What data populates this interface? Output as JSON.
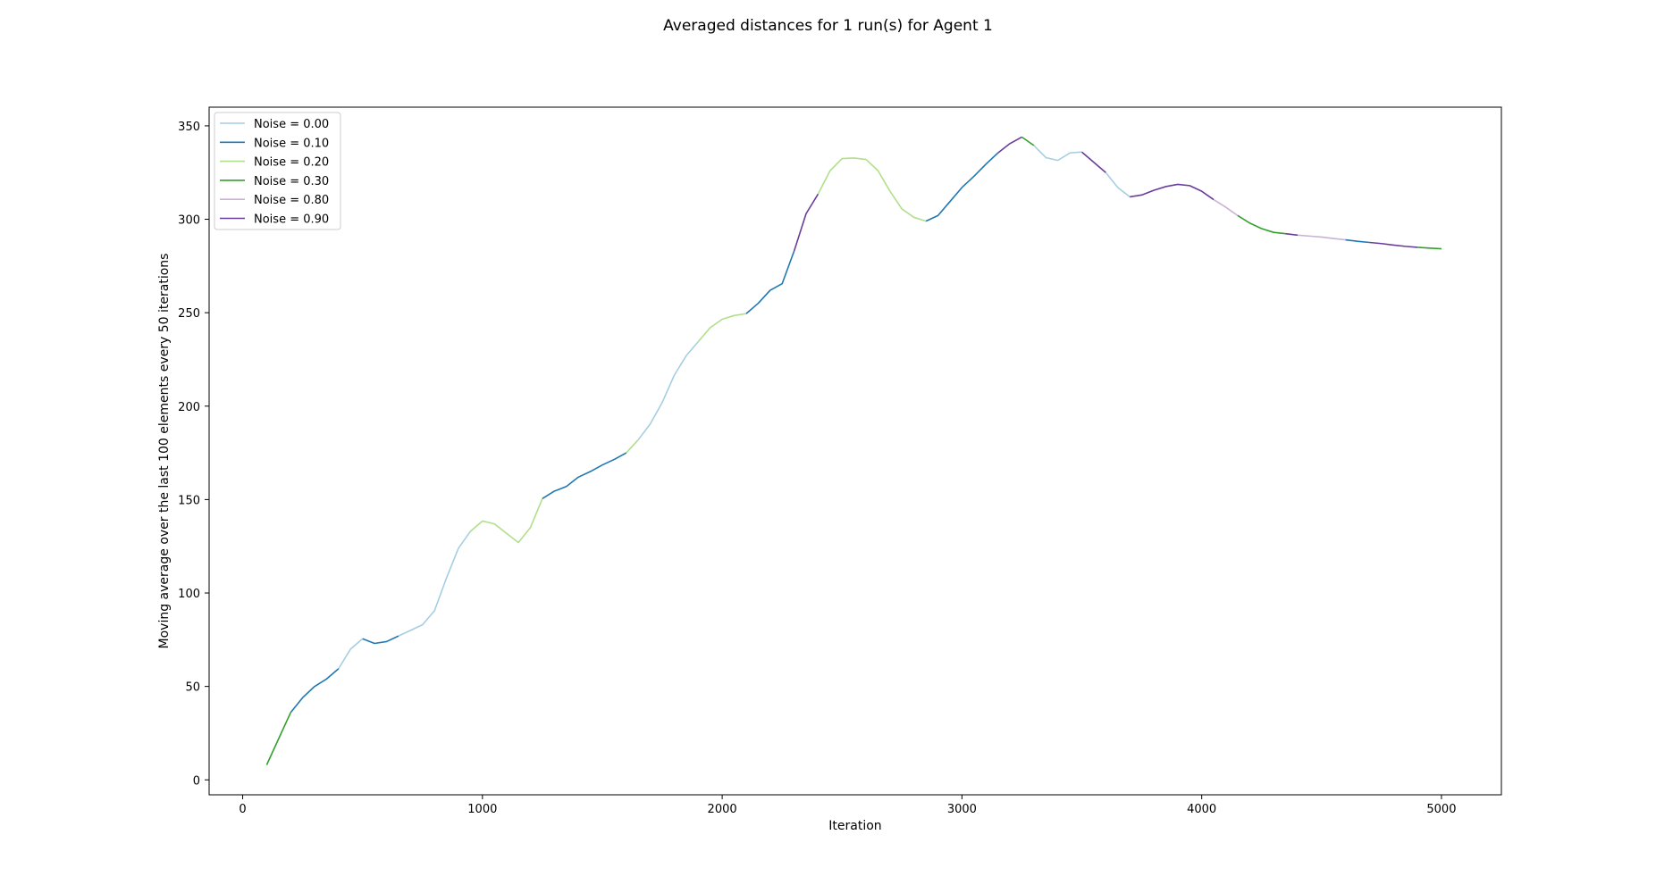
{
  "chart_data": {
    "type": "line",
    "title": "Averaged distances for 1 run(s) for Agent 1",
    "xlabel": "Iteration",
    "ylabel": "Moving average over the last 100 elements every 50 iterations",
    "xlim": [
      -140,
      5250
    ],
    "ylim": [
      -8,
      360
    ],
    "xticks": [
      0,
      1000,
      2000,
      3000,
      4000,
      5000
    ],
    "yticks": [
      0,
      50,
      100,
      150,
      200,
      250,
      300,
      350
    ],
    "grid": false,
    "legend_position": "top-left",
    "series": [
      {
        "name": "Noise = 0.00",
        "color": "#a6cee3"
      },
      {
        "name": "Noise = 0.10",
        "color": "#1f78b4"
      },
      {
        "name": "Noise = 0.20",
        "color": "#b2df8a"
      },
      {
        "name": "Noise = 0.30",
        "color": "#33a02c"
      },
      {
        "name": "Noise = 0.80",
        "color": "#cab2d6"
      },
      {
        "name": "Noise = 0.90",
        "color": "#6a3d9a"
      }
    ],
    "segments": [
      {
        "series": 3,
        "points": [
          [
            100,
            8
          ],
          [
            200,
            36
          ]
        ]
      },
      {
        "series": 1,
        "points": [
          [
            200,
            36
          ],
          [
            250,
            44
          ],
          [
            300,
            50
          ],
          [
            350,
            54
          ],
          [
            400,
            59.5
          ]
        ]
      },
      {
        "series": 0,
        "points": [
          [
            400,
            59.5
          ],
          [
            450,
            70
          ],
          [
            500,
            75.5
          ]
        ]
      },
      {
        "series": 1,
        "points": [
          [
            500,
            75.5
          ],
          [
            550,
            73
          ],
          [
            600,
            74
          ],
          [
            650,
            77
          ]
        ]
      },
      {
        "series": 0,
        "points": [
          [
            650,
            77
          ],
          [
            700,
            80
          ],
          [
            750,
            83
          ],
          [
            800,
            90.5
          ],
          [
            850,
            108
          ],
          [
            900,
            124
          ],
          [
            950,
            133
          ]
        ]
      },
      {
        "series": 2,
        "points": [
          [
            950,
            133
          ],
          [
            1000,
            138.5
          ],
          [
            1050,
            137
          ],
          [
            1100,
            132
          ],
          [
            1150,
            127
          ],
          [
            1200,
            135
          ],
          [
            1250,
            150.5
          ]
        ]
      },
      {
        "series": 1,
        "points": [
          [
            1250,
            150.5
          ],
          [
            1300,
            154.5
          ],
          [
            1350,
            157
          ],
          [
            1400,
            162
          ],
          [
            1450,
            165
          ],
          [
            1500,
            168.5
          ],
          [
            1550,
            171.5
          ],
          [
            1600,
            175
          ]
        ]
      },
      {
        "series": 2,
        "points": [
          [
            1600,
            175
          ],
          [
            1650,
            182
          ]
        ]
      },
      {
        "series": 0,
        "points": [
          [
            1650,
            182
          ],
          [
            1700,
            190.5
          ],
          [
            1750,
            202
          ],
          [
            1800,
            216.5
          ],
          [
            1850,
            227
          ],
          [
            1900,
            234.5
          ]
        ]
      },
      {
        "series": 2,
        "points": [
          [
            1900,
            234.5
          ],
          [
            1950,
            242
          ],
          [
            2000,
            246.5
          ],
          [
            2050,
            248.5
          ],
          [
            2100,
            249.5
          ]
        ]
      },
      {
        "series": 1,
        "points": [
          [
            2100,
            249.5
          ],
          [
            2150,
            255
          ],
          [
            2200,
            262
          ],
          [
            2250,
            265.5
          ],
          [
            2300,
            283
          ]
        ]
      },
      {
        "series": 5,
        "points": [
          [
            2300,
            283
          ],
          [
            2350,
            303
          ],
          [
            2400,
            313.5
          ]
        ]
      },
      {
        "series": 2,
        "points": [
          [
            2400,
            313.5
          ],
          [
            2450,
            326
          ],
          [
            2500,
            332.5
          ],
          [
            2550,
            332.8
          ],
          [
            2600,
            332
          ],
          [
            2650,
            326
          ],
          [
            2700,
            315
          ],
          [
            2750,
            305.5
          ],
          [
            2800,
            301
          ],
          [
            2850,
            299
          ]
        ]
      },
      {
        "series": 1,
        "points": [
          [
            2850,
            299
          ],
          [
            2900,
            302
          ],
          [
            2950,
            309.5
          ],
          [
            3000,
            317
          ],
          [
            3050,
            323
          ],
          [
            3100,
            329.5
          ],
          [
            3150,
            335.5
          ]
        ]
      },
      {
        "series": 5,
        "points": [
          [
            3150,
            335.5
          ],
          [
            3200,
            340.5
          ],
          [
            3250,
            344
          ]
        ]
      },
      {
        "series": 3,
        "points": [
          [
            3250,
            344
          ],
          [
            3300,
            339.5
          ]
        ]
      },
      {
        "series": 0,
        "points": [
          [
            3300,
            339.5
          ],
          [
            3350,
            333
          ],
          [
            3400,
            331.5
          ],
          [
            3450,
            335.5
          ],
          [
            3500,
            336
          ]
        ]
      },
      {
        "series": 5,
        "points": [
          [
            3500,
            336
          ],
          [
            3550,
            330.5
          ],
          [
            3600,
            325
          ]
        ]
      },
      {
        "series": 0,
        "points": [
          [
            3600,
            325
          ],
          [
            3650,
            317
          ],
          [
            3700,
            312
          ]
        ]
      },
      {
        "series": 5,
        "points": [
          [
            3700,
            312
          ],
          [
            3750,
            313
          ],
          [
            3800,
            315.5
          ],
          [
            3850,
            317.5
          ],
          [
            3900,
            318.7
          ],
          [
            3950,
            318
          ],
          [
            4000,
            315
          ],
          [
            4050,
            310.5
          ]
        ]
      },
      {
        "series": 4,
        "points": [
          [
            4050,
            310.5
          ],
          [
            4100,
            306.5
          ],
          [
            4150,
            302
          ]
        ]
      },
      {
        "series": 3,
        "points": [
          [
            4150,
            302
          ],
          [
            4200,
            298
          ],
          [
            4250,
            295
          ],
          [
            4300,
            293
          ],
          [
            4350,
            292.3
          ]
        ]
      },
      {
        "series": 5,
        "points": [
          [
            4350,
            292.3
          ],
          [
            4400,
            291.5
          ]
        ]
      },
      {
        "series": 4,
        "points": [
          [
            4400,
            291.5
          ],
          [
            4450,
            291
          ],
          [
            4500,
            290.5
          ],
          [
            4550,
            289.7
          ],
          [
            4600,
            289
          ]
        ]
      },
      {
        "series": 1,
        "points": [
          [
            4600,
            289
          ],
          [
            4650,
            288.2
          ],
          [
            4700,
            287.6
          ]
        ]
      },
      {
        "series": 5,
        "points": [
          [
            4700,
            287.6
          ],
          [
            4750,
            287
          ],
          [
            4800,
            286.2
          ],
          [
            4850,
            285.5
          ],
          [
            4900,
            285
          ]
        ]
      },
      {
        "series": 3,
        "points": [
          [
            4900,
            285
          ],
          [
            4950,
            284.6
          ],
          [
            5000,
            284.2
          ]
        ]
      }
    ]
  }
}
